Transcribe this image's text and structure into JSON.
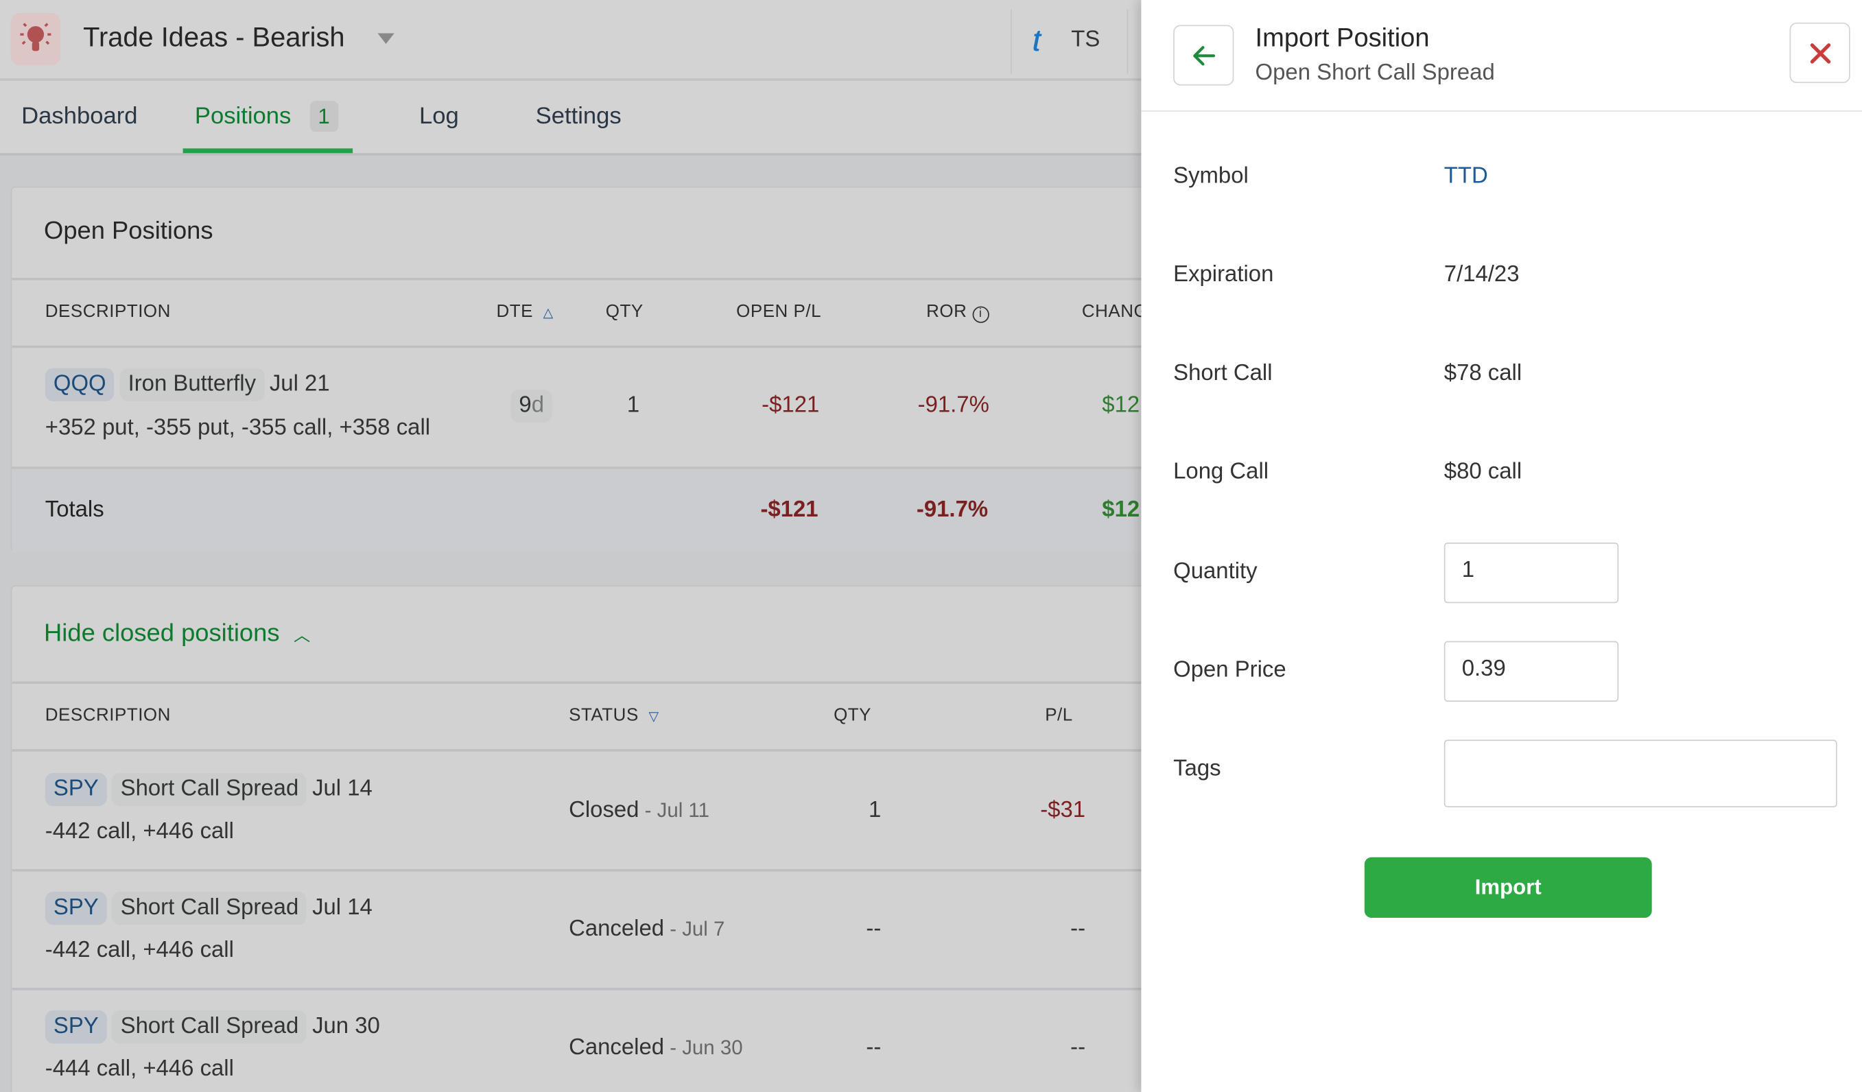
{
  "header": {
    "title": "Trade Ideas - Bearish",
    "broker": "TS"
  },
  "tabs": [
    {
      "label": "Dashboard"
    },
    {
      "label": "Positions",
      "badge": "1"
    },
    {
      "label": "Log"
    },
    {
      "label": "Settings"
    }
  ],
  "open_positions": {
    "title": "Open Positions",
    "columns": [
      "DESCRIPTION",
      "DTE",
      "QTY",
      "OPEN P/L",
      "ROR",
      "CHANG"
    ],
    "rows": [
      {
        "symbol": "QQQ",
        "strategy": "Iron Butterfly",
        "expiry": "Jul 21",
        "legs": "+352 put, -355 put, -355 call, +358 call",
        "dte": "9",
        "dte_unit": "d",
        "qty": "1",
        "open_pl": "-$121",
        "ror": "-91.7%",
        "change": "$12"
      }
    ],
    "totals": {
      "label": "Totals",
      "open_pl": "-$121",
      "ror": "-91.7%",
      "change": "$12"
    }
  },
  "closed_positions": {
    "toggle": "Hide closed positions",
    "columns": [
      "DESCRIPTION",
      "STATUS",
      "QTY",
      "P/L"
    ],
    "rows": [
      {
        "symbol": "SPY",
        "strategy": "Short Call Spread",
        "expiry": "Jul 14",
        "legs": "-442 call, +446 call",
        "status": "Closed",
        "status_date": " - Jul 11",
        "qty": "1",
        "pl": "-$31"
      },
      {
        "symbol": "SPY",
        "strategy": "Short Call Spread",
        "expiry": "Jul 14",
        "legs": "-442 call, +446 call",
        "status": "Canceled",
        "status_date": " - Jul 7",
        "qty": "--",
        "pl": "--"
      },
      {
        "symbol": "SPY",
        "strategy": "Short Call Spread",
        "expiry": "Jun 30",
        "legs": "-444 call, +446 call",
        "status": "Canceled",
        "status_date": " - Jun 30",
        "qty": "--",
        "pl": "--"
      }
    ]
  },
  "panel": {
    "title": "Import Position",
    "subtitle": "Open Short Call Spread",
    "fields": {
      "symbol_label": "Symbol",
      "symbol": "TTD",
      "expiration_label": "Expiration",
      "expiration": "7/14/23",
      "short_call_label": "Short Call",
      "short_call": "$78 call",
      "long_call_label": "Long Call",
      "long_call": "$80 call",
      "quantity_label": "Quantity",
      "quantity": "1",
      "open_price_label": "Open Price",
      "open_price": "0.39",
      "tags_label": "Tags",
      "tags": ""
    },
    "import_label": "Import"
  },
  "colors": {
    "accent": "#2eaa44",
    "negative": "#7a2020",
    "positive": "#2e7d2e",
    "link": "#1c4b7a"
  }
}
